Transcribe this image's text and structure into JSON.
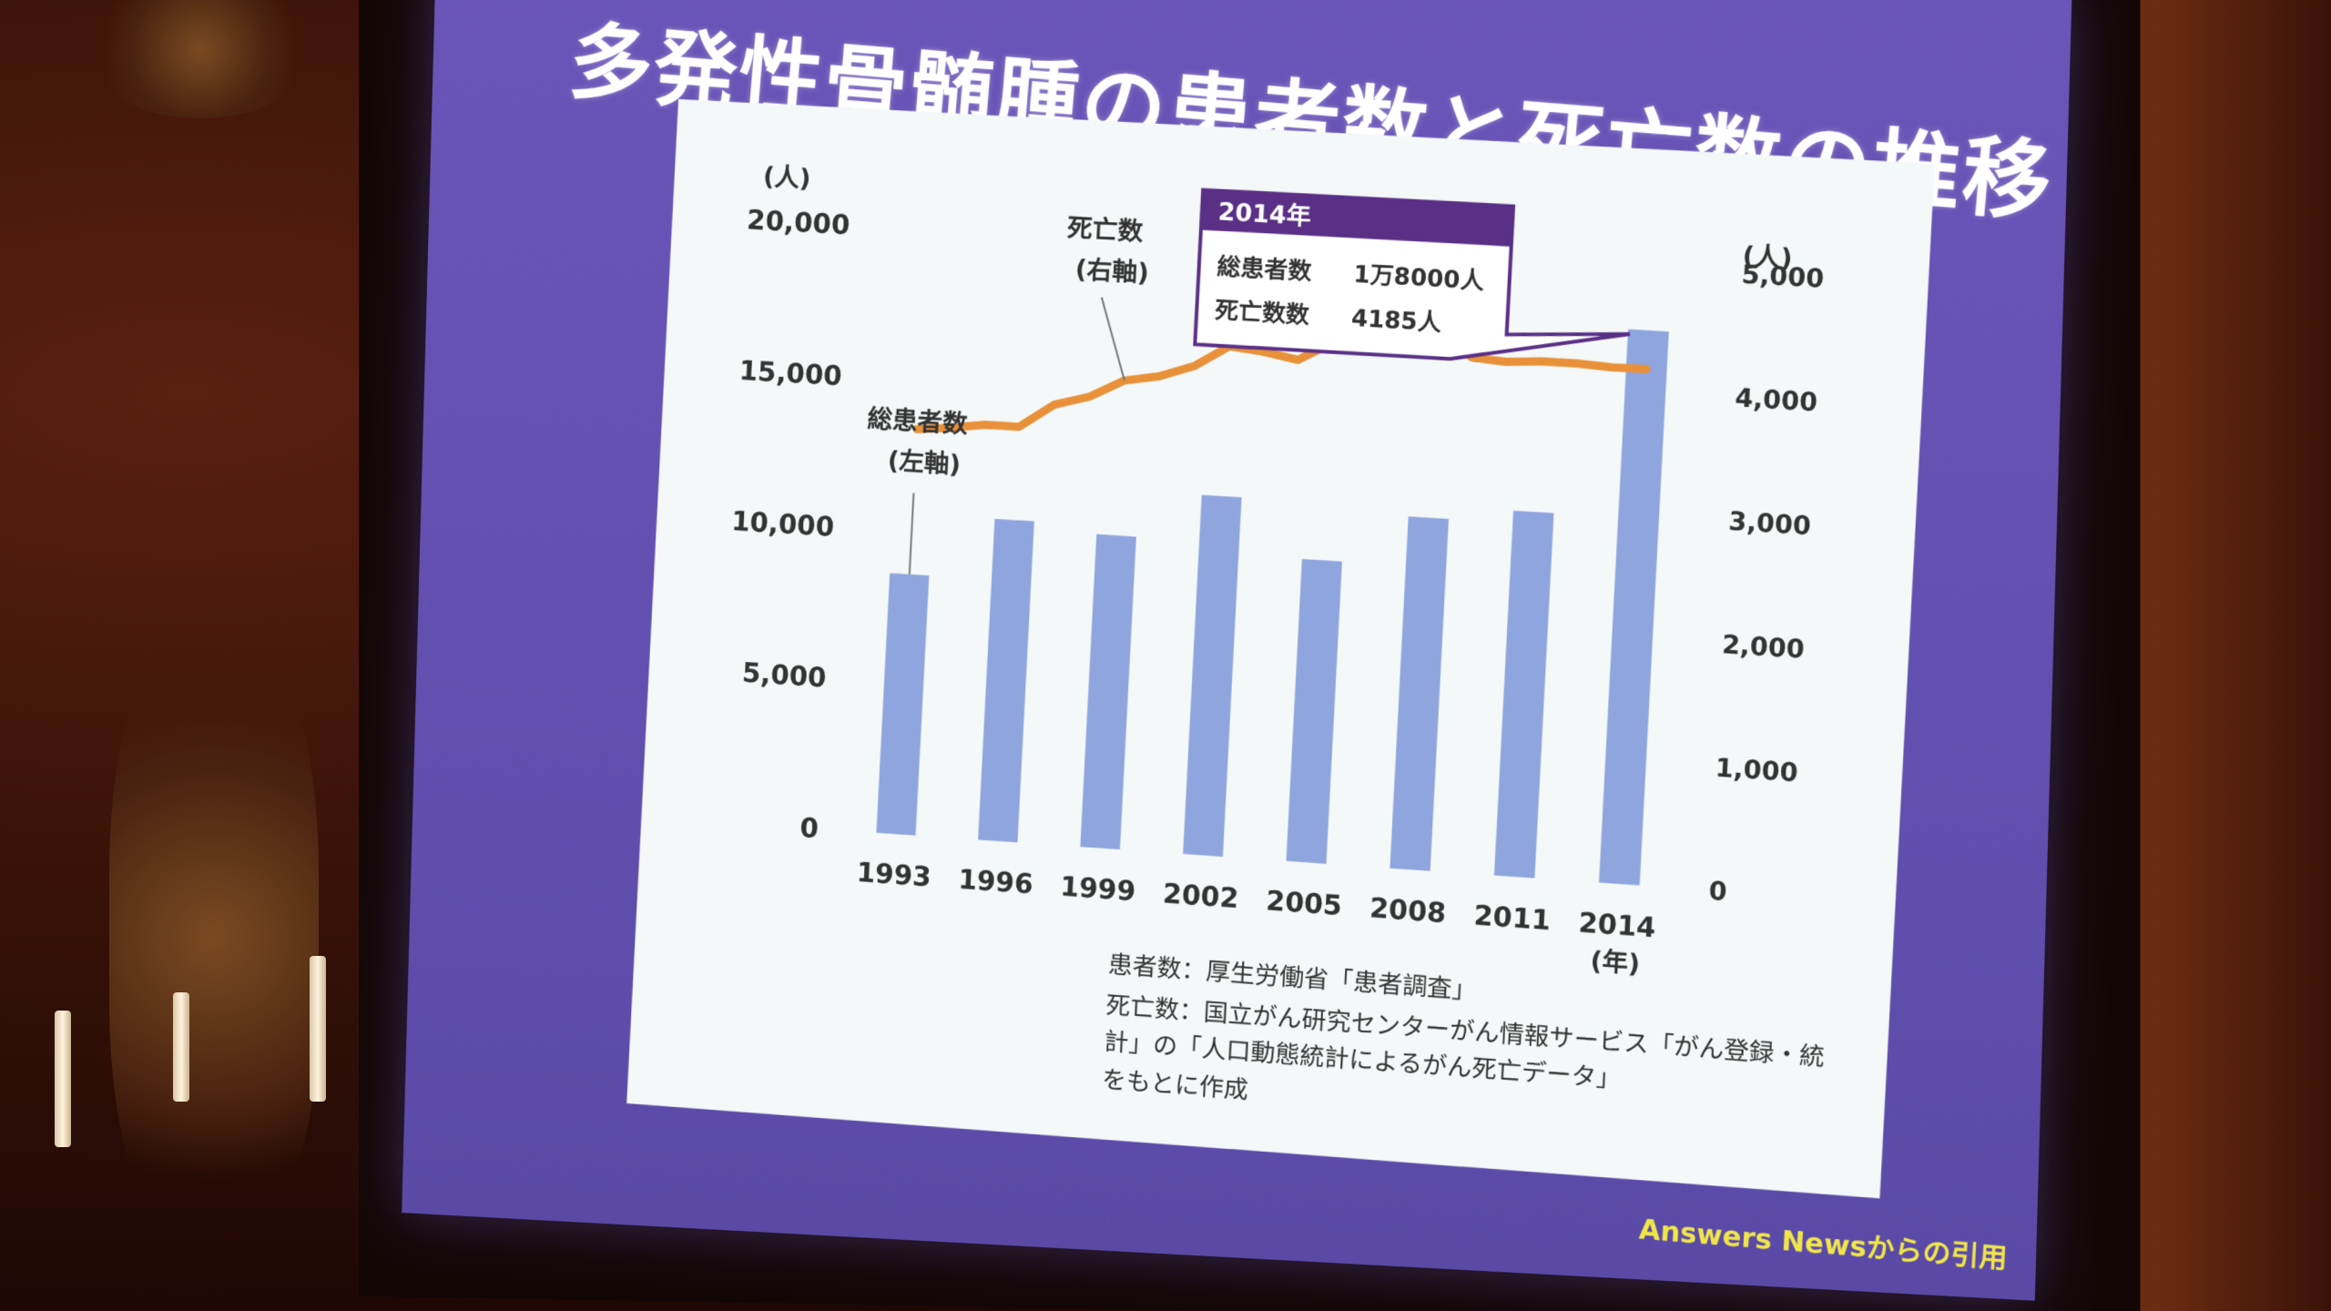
{
  "slide": {
    "title": "多発性骨髄腫の患者数と死亡数の推移",
    "credit": "Answers Newsからの引用"
  },
  "chart_data": {
    "type": "bar",
    "title": "多発性骨髄腫の患者数と死亡数の推移",
    "categories": [
      "1993",
      "1996",
      "1999",
      "2002",
      "2005",
      "2008",
      "2011",
      "2014"
    ],
    "x_unit": "(年)",
    "left_axis": {
      "unit": "(人)",
      "ticks": [
        "0",
        "5,000",
        "10,000",
        "15,000",
        "20,000"
      ],
      "ylim": [
        0,
        20000
      ]
    },
    "right_axis": {
      "unit": "(人)",
      "ticks": [
        "0",
        "1,000",
        "2,000",
        "3,000",
        "4,000",
        "5,000"
      ],
      "ylim": [
        0,
        5000
      ]
    },
    "series": [
      {
        "name": "総患者数",
        "axis_note": "(左軸)",
        "type": "bar",
        "color": "#8fa5de",
        "values": [
          8600,
          10600,
          10300,
          11800,
          9900,
          11500,
          11900,
          18000
        ]
      },
      {
        "name": "死亡数",
        "axis_note": "(右軸)",
        "type": "line",
        "color": "#e8913a",
        "x": [
          1993,
          1994,
          1995,
          1996,
          1997,
          1998,
          1999,
          2000,
          2001,
          2002,
          2003,
          2004,
          2005,
          2006,
          2007,
          2008,
          2009,
          2010,
          2011,
          2012,
          2013,
          2014
        ],
        "values": [
          3350,
          3380,
          3420,
          3420,
          3620,
          3700,
          3850,
          3900,
          4000,
          4180,
          4150,
          4100,
          4260,
          4350,
          4250,
          4400,
          4200,
          4180,
          4200,
          4200,
          4185,
          4185
        ]
      }
    ],
    "callout": {
      "header": "2014年",
      "rows": [
        {
          "label": "総患者数",
          "value": "1万8000人"
        },
        {
          "label": "死亡数数",
          "value": "4185人"
        }
      ]
    },
    "grid": false
  },
  "captions": [
    "患者数：厚生労働省「患者調査」",
    "死亡数：国立がん研究センターがん情報サービス「がん登録・統",
    "計」の「人口動態統計によるがん死亡データ」",
    "をもとに作成"
  ],
  "colors": {
    "slide_bg": "#6250b0",
    "panel_bg": "#f4f8f8",
    "callout_header": "#5a2f86",
    "bar": "#8fa5de",
    "line": "#e8913a"
  }
}
